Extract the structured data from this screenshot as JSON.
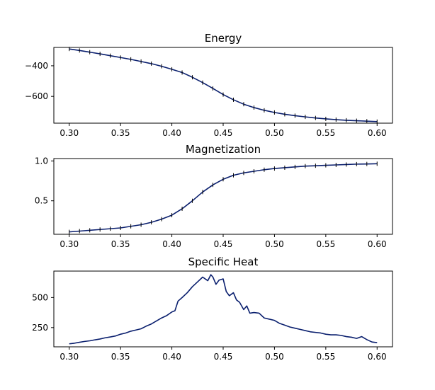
{
  "chart_data": [
    {
      "type": "line",
      "title": "Energy",
      "xlim": [
        0.285,
        0.615
      ],
      "ylim": [
        -775,
        -280
      ],
      "xticks": [
        0.3,
        0.35,
        0.4,
        0.45,
        0.5,
        0.55,
        0.6
      ],
      "xtick_labels": [
        "0.30",
        "0.35",
        "0.40",
        "0.45",
        "0.50",
        "0.55",
        "0.60"
      ],
      "yticks": [
        -400,
        -600
      ],
      "ytick_labels": [
        "−400",
        "−600"
      ],
      "grid": false,
      "error_bars": true,
      "color": "#0a1f6e",
      "x": [
        0.3,
        0.31,
        0.32,
        0.33,
        0.34,
        0.35,
        0.36,
        0.37,
        0.38,
        0.39,
        0.4,
        0.41,
        0.42,
        0.43,
        0.44,
        0.45,
        0.46,
        0.47,
        0.48,
        0.49,
        0.5,
        0.51,
        0.52,
        0.53,
        0.54,
        0.55,
        0.56,
        0.57,
        0.58,
        0.59,
        0.6
      ],
      "y": [
        -290,
        -300,
        -311,
        -322,
        -334,
        -346,
        -358,
        -372,
        -386,
        -403,
        -423,
        -444,
        -475,
        -510,
        -548,
        -588,
        -622,
        -651,
        -673,
        -691,
        -705,
        -717,
        -726,
        -734,
        -741,
        -747,
        -752,
        -756,
        -759,
        -762,
        -765
      ]
    },
    {
      "type": "line",
      "title": "Magnetization",
      "xlim": [
        0.285,
        0.615
      ],
      "ylim": [
        0.08,
        1.03
      ],
      "xticks": [
        0.3,
        0.35,
        0.4,
        0.45,
        0.5,
        0.55,
        0.6
      ],
      "xtick_labels": [
        "0.30",
        "0.35",
        "0.40",
        "0.45",
        "0.50",
        "0.55",
        "0.60"
      ],
      "yticks": [
        0.5,
        1.0
      ],
      "ytick_labels": [
        "0.5",
        "1.0"
      ],
      "grid": false,
      "error_bars": true,
      "color": "#0a1f6e",
      "x": [
        0.3,
        0.31,
        0.32,
        0.33,
        0.34,
        0.35,
        0.36,
        0.37,
        0.38,
        0.39,
        0.4,
        0.41,
        0.42,
        0.43,
        0.44,
        0.45,
        0.46,
        0.47,
        0.48,
        0.49,
        0.5,
        0.51,
        0.52,
        0.53,
        0.54,
        0.55,
        0.56,
        0.57,
        0.58,
        0.59,
        0.6
      ],
      "y": [
        0.11,
        0.12,
        0.13,
        0.14,
        0.15,
        0.16,
        0.18,
        0.2,
        0.23,
        0.27,
        0.32,
        0.4,
        0.5,
        0.61,
        0.7,
        0.77,
        0.82,
        0.85,
        0.87,
        0.89,
        0.905,
        0.915,
        0.925,
        0.935,
        0.94,
        0.945,
        0.95,
        0.955,
        0.96,
        0.962,
        0.965
      ]
    },
    {
      "type": "line",
      "title": "Specific Heat",
      "xlim": [
        0.285,
        0.615
      ],
      "ylim": [
        90,
        720
      ],
      "xticks": [
        0.3,
        0.35,
        0.4,
        0.45,
        0.5,
        0.55,
        0.6
      ],
      "xtick_labels": [
        "0.30",
        "0.35",
        "0.40",
        "0.45",
        "0.50",
        "0.55",
        "0.60"
      ],
      "yticks": [
        250,
        500
      ],
      "ytick_labels": [
        "250",
        "500"
      ],
      "grid": false,
      "error_bars": false,
      "color": "#0a1f6e",
      "x": [
        0.3,
        0.305,
        0.31,
        0.315,
        0.32,
        0.325,
        0.33,
        0.335,
        0.34,
        0.345,
        0.35,
        0.355,
        0.36,
        0.365,
        0.37,
        0.375,
        0.38,
        0.385,
        0.39,
        0.395,
        0.4,
        0.403,
        0.406,
        0.41,
        0.415,
        0.42,
        0.425,
        0.43,
        0.435,
        0.438,
        0.44,
        0.443,
        0.446,
        0.45,
        0.453,
        0.456,
        0.46,
        0.463,
        0.466,
        0.47,
        0.473,
        0.476,
        0.48,
        0.485,
        0.49,
        0.495,
        0.5,
        0.505,
        0.51,
        0.515,
        0.52,
        0.525,
        0.53,
        0.535,
        0.54,
        0.545,
        0.55,
        0.555,
        0.56,
        0.565,
        0.57,
        0.575,
        0.58,
        0.585,
        0.59,
        0.595,
        0.6
      ],
      "y": [
        115,
        120,
        128,
        135,
        140,
        148,
        155,
        165,
        172,
        180,
        195,
        205,
        220,
        230,
        240,
        262,
        280,
        305,
        330,
        350,
        380,
        390,
        470,
        500,
        540,
        590,
        630,
        670,
        640,
        690,
        670,
        610,
        645,
        655,
        550,
        515,
        540,
        480,
        460,
        400,
        430,
        370,
        375,
        370,
        330,
        320,
        310,
        285,
        270,
        255,
        245,
        235,
        225,
        215,
        210,
        205,
        195,
        190,
        190,
        185,
        175,
        170,
        160,
        175,
        150,
        130,
        125
      ]
    }
  ]
}
